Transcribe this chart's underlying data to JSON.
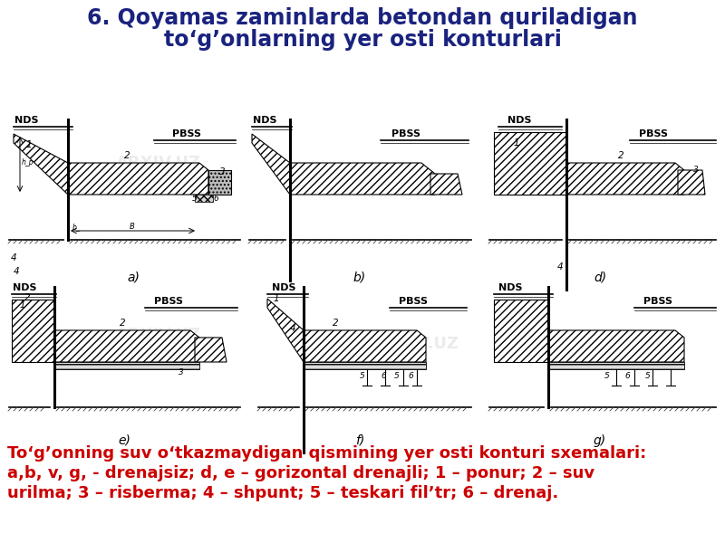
{
  "title_line1": "6. Qoyamas zaminlarda betondan quriladigan",
  "title_line2": "to‘g’onlarning yer osti konturlari",
  "title_color": "#1a237e",
  "title_fontsize": 17,
  "caption_line1": "To‘g’onning suv o‘tkazmaydigan qismining yer osti konturi sxemalari:",
  "caption_line2": "a,b, v, g, - drenajsiz; d, e – gorizontal drenajli; 1 – ponur; 2 – suv",
  "caption_line3": "urilma; 3 – risberma; 4 – shpunt; 5 – teskari fil’tr; 6 – drenaj.",
  "caption_color": "#cc0000",
  "caption_fontsize": 13,
  "bg_color": "#ffffff"
}
